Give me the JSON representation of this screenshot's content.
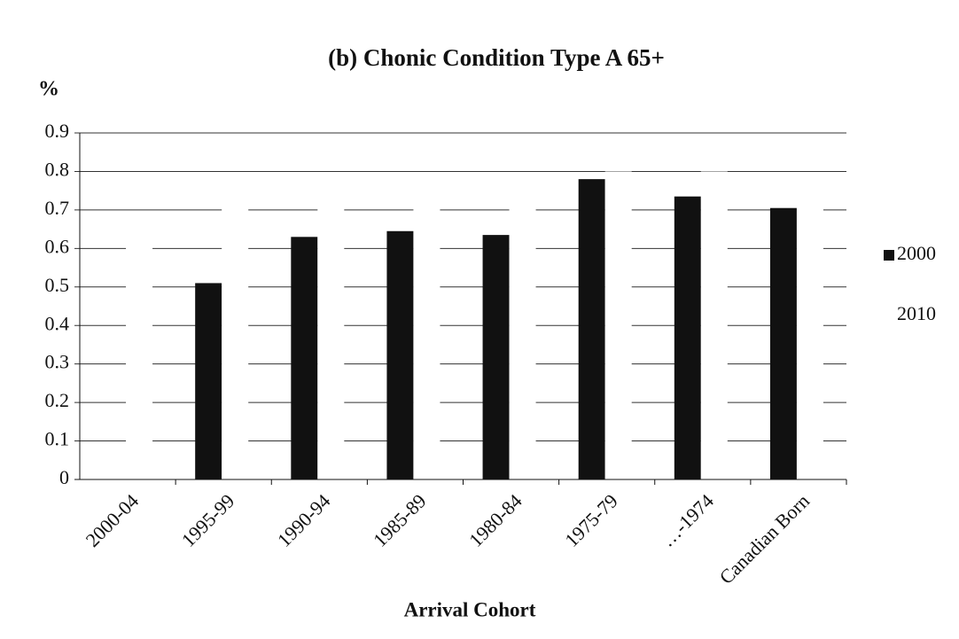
{
  "chart_data": {
    "type": "bar",
    "title": "(b) Chonic Condition Type A 65+",
    "y_label": "%",
    "x_label": "Arrival Cohort",
    "categories": [
      "2000-04",
      "1995-99",
      "1990-94",
      "1985-89",
      "1980-84",
      "1975-79",
      "…-1974",
      "Canadian Born"
    ],
    "series": [
      {
        "name": "2000",
        "color": "#111111",
        "values": [
          0,
          0.51,
          0.63,
          0.645,
          0.635,
          0.78,
          0.735,
          0.705
        ]
      },
      {
        "name": "2010",
        "color": "#ffffff",
        "values": [
          0.65,
          0.75,
          0.75,
          0.72,
          0.75,
          0.8,
          0.8,
          0.78
        ]
      }
    ],
    "ylim": [
      0,
      0.9
    ],
    "yticks": [
      0,
      0.1,
      0.2,
      0.3,
      0.4,
      0.5,
      0.6,
      0.7,
      0.8,
      0.9
    ],
    "grid": true,
    "legend": "right"
  }
}
